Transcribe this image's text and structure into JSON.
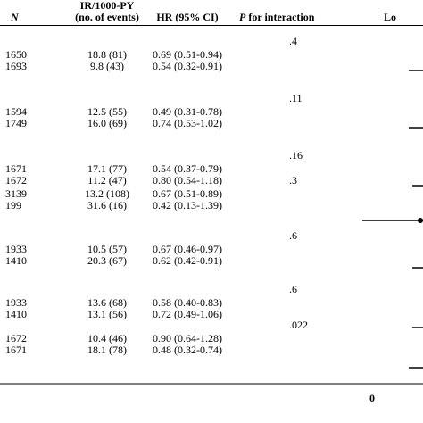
{
  "header": {
    "n_label": "N",
    "ir_label_line1": "IR/1000-PY",
    "ir_label_line2": "(no. of events)",
    "hr_label": "HR (95% CI)",
    "p_label_italic": "P",
    "p_label_rest": " for interaction",
    "plot_label_partial": "Lo"
  },
  "groups": [
    {
      "p": ".4",
      "rows": [
        {
          "n": "1650",
          "ir": "18.8 (81)",
          "hr": "0.69 (0.51-0.94)"
        },
        {
          "n": "1693",
          "ir": "9.8 (43)",
          "hr": "0.54 (0.32-0.91)"
        }
      ]
    },
    {
      "p": ".11",
      "rows": [
        {
          "n": "1594",
          "ir": "12.5 (55)",
          "hr": "0.49 (0.31-0.78)"
        },
        {
          "n": "1749",
          "ir": "16.0 (69)",
          "hr": "0.74 (0.53-1.02)"
        }
      ]
    },
    {
      "p": ".16",
      "rows": [
        {
          "n": "1671",
          "ir": "17.1 (77)",
          "hr": "0.54 (0.37-0.79)"
        },
        {
          "n": "1672",
          "ir": "11.2 (47)",
          "hr": "0.80 (0.54-1.18)"
        }
      ]
    },
    {
      "p": ".3",
      "rows": [
        {
          "n": "3139",
          "ir": "13.2 (108)",
          "hr": "0.67 (0.51-0.89)"
        },
        {
          "n": "199",
          "ir": "31.6 (16)",
          "hr": "0.42 (0.13-1.39)"
        }
      ]
    },
    {
      "p": ".6",
      "rows": [
        {
          "n": "1933",
          "ir": "10.5 (57)",
          "hr": "0.67 (0.46-0.97)"
        },
        {
          "n": "1410",
          "ir": "20.3 (67)",
          "hr": "0.62 (0.42-0.91)"
        }
      ]
    },
    {
      "p": ".6",
      "rows": [
        {
          "n": "1933",
          "ir": "13.6 (68)",
          "hr": "0.58 (0.40-0.83)"
        },
        {
          "n": "1410",
          "ir": "13.1 (56)",
          "hr": "0.72 (0.49-1.06)"
        }
      ]
    },
    {
      "p": ".022",
      "rows": [
        {
          "n": "1672",
          "ir": "10.4 (46)",
          "hr": "0.90 (0.64-1.28)"
        },
        {
          "n": "1671",
          "ir": "18.1 (78)",
          "hr": "0.48 (0.32-0.74)"
        }
      ]
    }
  ],
  "axis": {
    "tick_zero": "0"
  }
}
